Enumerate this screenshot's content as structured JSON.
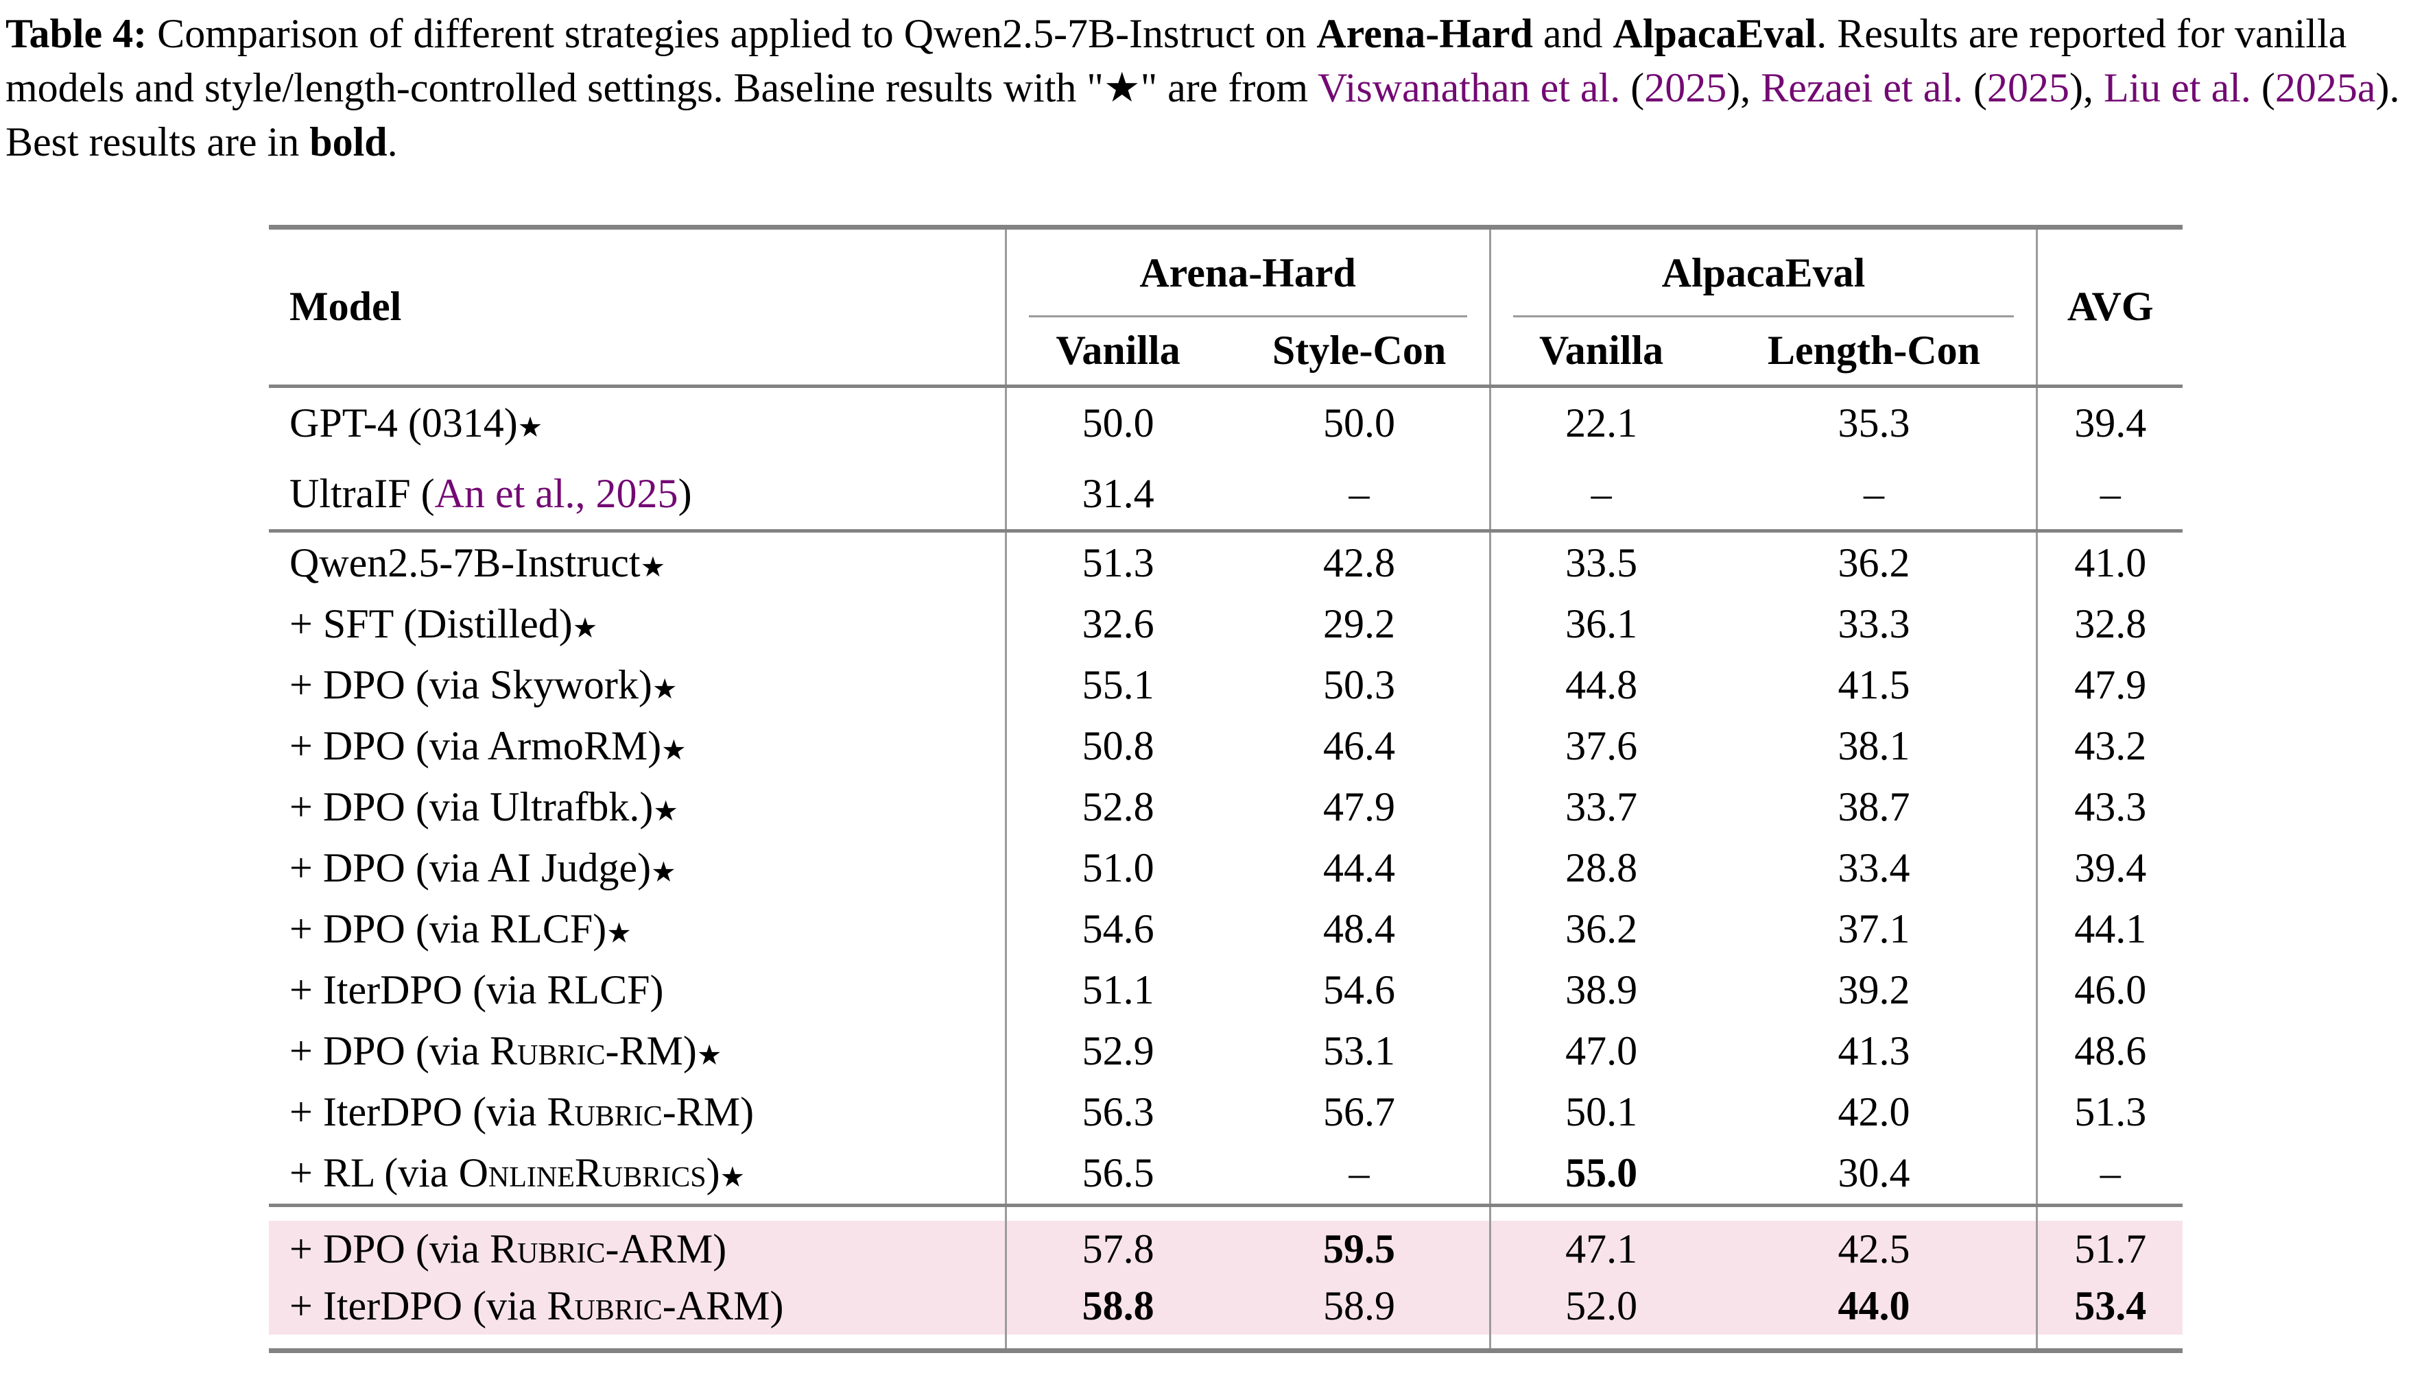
{
  "colors": {
    "citation_purple": "#730973",
    "highlight_pink": "#F8E3EB",
    "rule_gray": "#828282",
    "line_gray": "#9b9b9b"
  },
  "caption": {
    "segments": [
      {
        "t": "Table 4: ",
        "b": true
      },
      {
        "t": "Comparison of different strategies applied to Qwen2.5-7B-Instruct on "
      },
      {
        "t": "Arena-Hard",
        "b": true
      },
      {
        "t": " and "
      },
      {
        "t": "AlpacaEval",
        "b": true
      },
      {
        "t": ". Results are reported for vanilla models and style/length-controlled settings. Baseline results with \"★\" are from "
      },
      {
        "t": "Viswanathan et al.",
        "purple": true
      },
      {
        "t": " ("
      },
      {
        "t": "2025",
        "purple": true
      },
      {
        "t": "), "
      },
      {
        "t": "Rezaei et al.",
        "purple": true
      },
      {
        "t": " ("
      },
      {
        "t": "2025",
        "purple": true
      },
      {
        "t": "), "
      },
      {
        "t": "Liu et al.",
        "purple": true
      },
      {
        "t": " ("
      },
      {
        "t": "2025a",
        "purple": true
      },
      {
        "t": "). Best results are in "
      },
      {
        "t": "bold",
        "b": true
      },
      {
        "t": "."
      }
    ]
  },
  "table": {
    "header": {
      "model": "Model",
      "groups": [
        "Arena-Hard",
        "AlpacaEval"
      ],
      "sub": [
        "Vanilla",
        "Style-Con",
        "Vanilla",
        "Length-Con"
      ],
      "avg": "AVG"
    },
    "sections": [
      {
        "name": "external-baselines",
        "highlight": false,
        "rows": [
          {
            "label": [
              {
                "t": "GPT-4 (0314)"
              },
              {
                "t": "★",
                "star": true
              }
            ],
            "values": [
              {
                "v": "50.0"
              },
              {
                "v": "50.0"
              },
              {
                "v": "22.1"
              },
              {
                "v": "35.3"
              },
              {
                "v": "39.4"
              }
            ]
          },
          {
            "label": [
              {
                "t": "UltraIF ("
              },
              {
                "t": "An et al., 2025",
                "purple": true
              },
              {
                "t": ")"
              }
            ],
            "values": [
              {
                "v": "31.4"
              },
              {
                "v": "–"
              },
              {
                "v": "–"
              },
              {
                "v": "–"
              },
              {
                "v": "–"
              }
            ]
          }
        ]
      },
      {
        "name": "qwen-strategies",
        "highlight": false,
        "rows": [
          {
            "label": [
              {
                "t": "Qwen2.5-7B-Instruct"
              },
              {
                "t": "★",
                "star": true
              }
            ],
            "values": [
              {
                "v": "51.3"
              },
              {
                "v": "42.8"
              },
              {
                "v": "33.5"
              },
              {
                "v": "36.2"
              },
              {
                "v": "41.0"
              }
            ]
          },
          {
            "label": [
              {
                "t": "+ SFT (Distilled)"
              },
              {
                "t": "★",
                "star": true
              }
            ],
            "values": [
              {
                "v": "32.6"
              },
              {
                "v": "29.2"
              },
              {
                "v": "36.1"
              },
              {
                "v": "33.3"
              },
              {
                "v": "32.8"
              }
            ]
          },
          {
            "label": [
              {
                "t": "+ DPO (via Skywork)"
              },
              {
                "t": "★",
                "star": true
              }
            ],
            "values": [
              {
                "v": "55.1"
              },
              {
                "v": "50.3"
              },
              {
                "v": "44.8"
              },
              {
                "v": "41.5"
              },
              {
                "v": "47.9"
              }
            ]
          },
          {
            "label": [
              {
                "t": "+ DPO (via ArmoRM)"
              },
              {
                "t": "★",
                "star": true
              }
            ],
            "values": [
              {
                "v": "50.8"
              },
              {
                "v": "46.4"
              },
              {
                "v": "37.6"
              },
              {
                "v": "38.1"
              },
              {
                "v": "43.2"
              }
            ]
          },
          {
            "label": [
              {
                "t": "+ DPO (via Ultrafbk.)"
              },
              {
                "t": "★",
                "star": true
              }
            ],
            "values": [
              {
                "v": "52.8"
              },
              {
                "v": "47.9"
              },
              {
                "v": "33.7"
              },
              {
                "v": "38.7"
              },
              {
                "v": "43.3"
              }
            ]
          },
          {
            "label": [
              {
                "t": "+ DPO (via AI Judge)"
              },
              {
                "t": "★",
                "star": true
              }
            ],
            "values": [
              {
                "v": "51.0"
              },
              {
                "v": "44.4"
              },
              {
                "v": "28.8"
              },
              {
                "v": "33.4"
              },
              {
                "v": "39.4"
              }
            ]
          },
          {
            "label": [
              {
                "t": "+ DPO (via RLCF)"
              },
              {
                "t": "★",
                "star": true
              }
            ],
            "values": [
              {
                "v": "54.6"
              },
              {
                "v": "48.4"
              },
              {
                "v": "36.2"
              },
              {
                "v": "37.1"
              },
              {
                "v": "44.1"
              }
            ]
          },
          {
            "label": [
              {
                "t": "+ IterDPO (via RLCF)"
              }
            ],
            "values": [
              {
                "v": "51.1"
              },
              {
                "v": "54.6"
              },
              {
                "v": "38.9"
              },
              {
                "v": "39.2"
              },
              {
                "v": "46.0"
              }
            ]
          },
          {
            "label": [
              {
                "t": "+ DPO (via "
              },
              {
                "t": "Rubric-RM",
                "sc": true
              },
              {
                "t": ")"
              },
              {
                "t": "★",
                "star": true
              }
            ],
            "values": [
              {
                "v": "52.9"
              },
              {
                "v": "53.1"
              },
              {
                "v": "47.0"
              },
              {
                "v": "41.3"
              },
              {
                "v": "48.6"
              }
            ]
          },
          {
            "label": [
              {
                "t": "+ IterDPO (via "
              },
              {
                "t": "Rubric-RM",
                "sc": true
              },
              {
                "t": ")"
              }
            ],
            "values": [
              {
                "v": "56.3"
              },
              {
                "v": "56.7"
              },
              {
                "v": "50.1"
              },
              {
                "v": "42.0"
              },
              {
                "v": "51.3"
              }
            ]
          },
          {
            "label": [
              {
                "t": "+ RL (via "
              },
              {
                "t": "OnlineRubrics",
                "sc": true
              },
              {
                "t": ")"
              },
              {
                "t": "★",
                "star": true
              }
            ],
            "values": [
              {
                "v": "56.5"
              },
              {
                "v": "–"
              },
              {
                "v": "55.0",
                "b": true
              },
              {
                "v": "30.4"
              },
              {
                "v": "–"
              }
            ]
          }
        ]
      },
      {
        "name": "ours-rubric-arm",
        "highlight": true,
        "rows": [
          {
            "label": [
              {
                "t": "+ DPO (via "
              },
              {
                "t": "Rubric-ARM",
                "sc": true
              },
              {
                "t": ")"
              }
            ],
            "values": [
              {
                "v": "57.8"
              },
              {
                "v": "59.5",
                "b": true
              },
              {
                "v": "47.1"
              },
              {
                "v": "42.5"
              },
              {
                "v": "51.7"
              }
            ]
          },
          {
            "label": [
              {
                "t": "+ IterDPO (via "
              },
              {
                "t": "Rubric-ARM",
                "sc": true
              },
              {
                "t": ")"
              }
            ],
            "values": [
              {
                "v": "58.8",
                "b": true
              },
              {
                "v": "58.9"
              },
              {
                "v": "52.0"
              },
              {
                "v": "44.0",
                "b": true
              },
              {
                "v": "53.4",
                "b": true
              }
            ]
          }
        ]
      }
    ]
  }
}
